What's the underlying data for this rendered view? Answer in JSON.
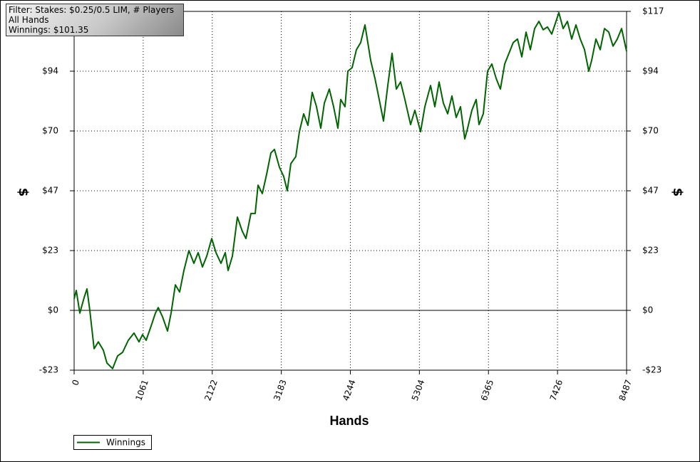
{
  "info_box": {
    "lines": [
      "Filter: Stakes: $0.25/0.5 LIM, # Players",
      "All Hands",
      "Winnings: $101.35"
    ]
  },
  "chart_data": {
    "type": "line",
    "xlabel": "Hands",
    "ylabel": "$",
    "xlim": [
      0,
      8487
    ],
    "xticks": [
      0,
      1061,
      2122,
      3183,
      4244,
      5304,
      6365,
      7426,
      8487
    ],
    "ylim": [
      -23.4,
      117
    ],
    "yticks": [
      {
        "value": -23.4,
        "label": "-$23"
      },
      {
        "value": 0,
        "label": "$0"
      },
      {
        "value": 23.4,
        "label": "$23"
      },
      {
        "value": 46.8,
        "label": "$47"
      },
      {
        "value": 70.2,
        "label": "$70"
      },
      {
        "value": 93.6,
        "label": "$94"
      },
      {
        "value": 117,
        "label": "$117"
      }
    ],
    "grid": true,
    "x": [
      0,
      33,
      88,
      153,
      197,
      241,
      307,
      372,
      449,
      504,
      591,
      668,
      745,
      832,
      920,
      997,
      1051,
      1106,
      1183,
      1248,
      1292,
      1358,
      1435,
      1489,
      1555,
      1621,
      1686,
      1763,
      1840,
      1905,
      1971,
      2037,
      2114,
      2179,
      2256,
      2322,
      2365,
      2431,
      2508,
      2584,
      2639,
      2716,
      2782,
      2825,
      2891,
      2957,
      3022,
      3077,
      3154,
      3220,
      3274,
      3329,
      3406,
      3461,
      3526,
      3592,
      3658,
      3723,
      3789,
      3844,
      3920,
      3986,
      4052,
      4096,
      4161,
      4205,
      4271,
      4337,
      4402,
      4468,
      4512,
      4556,
      4621,
      4687,
      4753,
      4818,
      4884,
      4950,
      5016,
      5081,
      5169,
      5235,
      5322,
      5388,
      5476,
      5541,
      5607,
      5673,
      5738,
      5804,
      5870,
      5935,
      6001,
      6045,
      6111,
      6176,
      6220,
      6286,
      6352,
      6417,
      6483,
      6549,
      6614,
      6680,
      6746,
      6812,
      6877,
      6943,
      7009,
      7074,
      7140,
      7206,
      7271,
      7337,
      7403,
      7447,
      7512,
      7578,
      7644,
      7709,
      7775,
      7841,
      7907,
      7950,
      8016,
      8082,
      8147,
      8213,
      8279,
      8345,
      8410,
      8487
    ],
    "series": [
      {
        "name": "Winnings",
        "color": "#006400",
        "values": [
          4.5,
          7.8,
          -1.1,
          5,
          8.4,
          0,
          -15,
          -12.3,
          -15.6,
          -20.6,
          -22.8,
          -17.8,
          -16.4,
          -11.7,
          -8.9,
          -12.3,
          -9.5,
          -11.7,
          -6.1,
          -1.1,
          1.1,
          -2.5,
          -8.1,
          -1.1,
          10,
          7.2,
          15.6,
          23.4,
          18.4,
          22.6,
          17,
          21.2,
          28.1,
          22.6,
          18.4,
          22.6,
          15.6,
          21.2,
          36.5,
          30.9,
          28.1,
          37.9,
          37.9,
          49,
          45.7,
          53.2,
          61.6,
          63,
          56,
          52.4,
          46.8,
          57.4,
          60.2,
          69.9,
          76.9,
          72.4,
          85.3,
          79.7,
          71.3,
          81.1,
          86.6,
          79.7,
          71.3,
          82.5,
          79.7,
          93.6,
          95,
          102,
          104.8,
          111.7,
          104.8,
          97.8,
          90.8,
          82.5,
          74.1,
          88,
          100.6,
          86.6,
          89.4,
          82.5,
          72.7,
          78.3,
          69.9,
          79.7,
          88,
          79.7,
          89.4,
          81.1,
          76.9,
          83.9,
          75.5,
          79.7,
          67.1,
          71.3,
          78.3,
          82.5,
          72.7,
          76.9,
          93.6,
          96.4,
          90.8,
          86.6,
          96.4,
          100.6,
          104.8,
          106.2,
          99.2,
          108.9,
          102,
          110.3,
          113.1,
          109.8,
          110.9,
          108.1,
          113.1,
          116.5,
          110.3,
          113.1,
          106.2,
          111.7,
          106.2,
          102,
          93.6,
          97.8,
          106.2,
          102,
          110.3,
          108.9,
          103.4,
          106.2,
          110.3,
          101.35
        ]
      }
    ]
  }
}
